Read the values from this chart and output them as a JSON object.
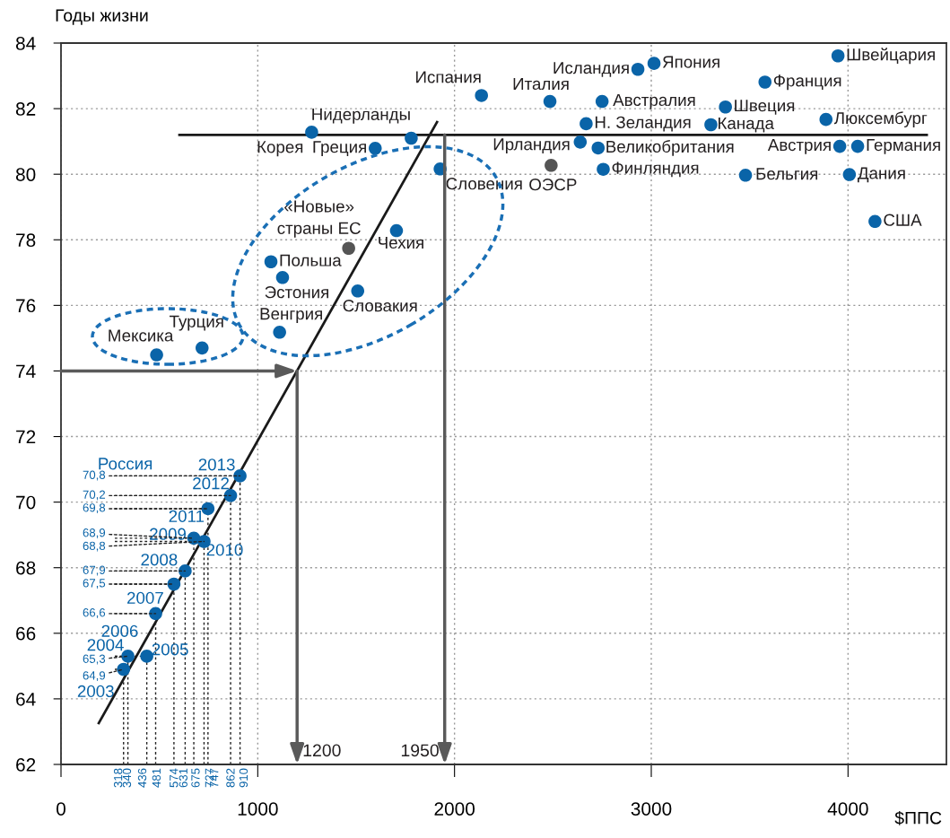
{
  "chart_data": {
    "type": "scatter",
    "xlabel": "$ППС",
    "ylabel": "Годы жизни",
    "xlim": [
      0,
      4500
    ],
    "ylim": [
      62,
      84
    ],
    "xticks": [
      0,
      1000,
      2000,
      3000,
      4000
    ],
    "yticks": [
      62,
      64,
      66,
      68,
      70,
      72,
      74,
      76,
      78,
      80,
      82,
      84
    ],
    "grid": true,
    "legend": false,
    "marker": "circle",
    "series": [
      {
        "color": "#0a64a8",
        "x": [
          3949,
          3014,
          2932,
          3578,
          2485,
          2137,
          2750,
          3377,
          3888,
          2669,
          3303,
          2639,
          2730,
          3958,
          4049,
          2756,
          3479,
          4007,
          4137,
          1274,
          1780,
          1597,
          1927,
          1705,
          1067,
          1126,
          1508,
          1111,
          486,
          717
        ],
        "values": [
          83.61,
          83.38,
          83.2,
          82.81,
          82.22,
          82.4,
          82.22,
          82.05,
          81.67,
          81.54,
          81.51,
          80.98,
          80.8,
          80.85,
          80.85,
          80.15,
          79.97,
          79.99,
          78.56,
          81.28,
          81.1,
          80.79,
          80.16,
          78.28,
          77.33,
          76.85,
          76.44,
          75.18,
          74.49,
          74.7
        ]
      },
      {
        "color": "#555555",
        "x": [
          2491,
          1462
        ],
        "values": [
          80.27,
          77.74
        ]
      },
      {
        "name": "Россия",
        "color": "#0a64a8",
        "x": [
          318,
          340,
          436,
          481,
          574,
          631,
          675,
          727,
          747,
          862,
          910
        ],
        "values": [
          64.9,
          65.3,
          65.3,
          66.6,
          67.5,
          67.9,
          68.9,
          68.8,
          69.8,
          70.2,
          70.8
        ]
      },
      {
        "type": "line",
        "marker": "none",
        "color": "#1a1a1a",
        "x": [
          192,
          1911
        ],
        "values": [
          63.26,
          81.59
        ]
      },
      {
        "type": "line",
        "marker": "none",
        "color": "#1a1a1a",
        "x": [
          602,
          4400
        ],
        "values": [
          81.2,
          81.2
        ]
      }
    ],
    "annotations": [
      {
        "text": "Швейцария",
        "x": 3949,
        "y": 83.61
      },
      {
        "text": "Япония",
        "x": 3014,
        "y": 83.38
      },
      {
        "text": "Исландия",
        "x": 2932,
        "y": 83.2
      },
      {
        "text": "Франция",
        "x": 3578,
        "y": 82.81
      },
      {
        "text": "Италия",
        "x": 2485,
        "y": 82.22
      },
      {
        "text": "Испания",
        "x": 2137,
        "y": 82.4
      },
      {
        "text": "Австралия",
        "x": 2750,
        "y": 82.22
      },
      {
        "text": "Швеция",
        "x": 3377,
        "y": 82.05
      },
      {
        "text": "Люксембург",
        "x": 3888,
        "y": 81.67
      },
      {
        "text": "Н. Зеландия",
        "x": 2669,
        "y": 81.54
      },
      {
        "text": "Канада",
        "x": 3303,
        "y": 81.51
      },
      {
        "text": "Ирландия",
        "x": 2639,
        "y": 80.98
      },
      {
        "text": "Великобритания",
        "x": 2730,
        "y": 80.8
      },
      {
        "text": "Австрия",
        "x": 3958,
        "y": 80.85
      },
      {
        "text": "Германия",
        "x": 4049,
        "y": 80.85
      },
      {
        "text": "ОЭСР",
        "x": 2491,
        "y": 80.27
      },
      {
        "text": "Финляндия",
        "x": 2756,
        "y": 80.15
      },
      {
        "text": "Бельгия",
        "x": 3479,
        "y": 79.97
      },
      {
        "text": "Дания",
        "x": 4007,
        "y": 79.99
      },
      {
        "text": "США",
        "x": 4137,
        "y": 78.56
      },
      {
        "text": "Корея",
        "x": 1274,
        "y": 81.28
      },
      {
        "text": "Нидерланды",
        "x": 1780,
        "y": 81.1
      },
      {
        "text": "Греция",
        "x": 1597,
        "y": 80.79
      },
      {
        "text": "Словения",
        "x": 1927,
        "y": 80.16
      },
      {
        "text": "Чехия",
        "x": 1705,
        "y": 78.28
      },
      {
        "text": "«Новые»\nстраны ЕС",
        "x": 1462,
        "y": 77.74
      },
      {
        "text": "Польша",
        "x": 1067,
        "y": 77.33
      },
      {
        "text": "Эстония",
        "x": 1126,
        "y": 76.85
      },
      {
        "text": "Словакия",
        "x": 1508,
        "y": 76.44
      },
      {
        "text": "Венгрия",
        "x": 1111,
        "y": 75.18
      },
      {
        "text": "Мексика",
        "x": 486,
        "y": 74.49
      },
      {
        "text": "Турция",
        "x": 717,
        "y": 74.7
      },
      {
        "text": "2003",
        "x": 318,
        "y": 64.9
      },
      {
        "text": "2004",
        "x": 340,
        "y": 65.3
      },
      {
        "text": "2005",
        "x": 436,
        "y": 65.3
      },
      {
        "text": "2006",
        "x": 481,
        "y": 66.6
      },
      {
        "text": "2007",
        "x": 574,
        "y": 67.5
      },
      {
        "text": "2008",
        "x": 631,
        "y": 67.9
      },
      {
        "text": "2009",
        "x": 675,
        "y": 68.9
      },
      {
        "text": "2010",
        "x": 727,
        "y": 68.8
      },
      {
        "text": "2011",
        "x": 747,
        "y": 69.8
      },
      {
        "text": "2012",
        "x": 862,
        "y": 70.2
      },
      {
        "text": "2013",
        "x": 910,
        "y": 70.8
      },
      {
        "text": "70,8",
        "x": 910,
        "y": 70.8
      },
      {
        "text": "70,2",
        "x": 862,
        "y": 70.2
      },
      {
        "text": "69,8",
        "x": 747,
        "y": 69.8
      },
      {
        "text": "68,9",
        "x": 675,
        "y": 68.9
      },
      {
        "text": "68,8",
        "x": 727,
        "y": 68.8
      },
      {
        "text": "67,9",
        "x": 631,
        "y": 67.9
      },
      {
        "text": "67,5",
        "x": 574,
        "y": 67.5
      },
      {
        "text": "66,6",
        "x": 481,
        "y": 66.6
      },
      {
        "text": "65,3",
        "x": 340,
        "y": 65.3
      },
      {
        "text": "64,9",
        "x": 318,
        "y": 64.9
      },
      {
        "text": "318",
        "x": 318,
        "y": 64.9
      },
      {
        "text": "340",
        "x": 340,
        "y": 65.3
      },
      {
        "text": "436",
        "x": 436,
        "y": 65.3
      },
      {
        "text": "481",
        "x": 481,
        "y": 66.6
      },
      {
        "text": "574",
        "x": 574,
        "y": 67.5
      },
      {
        "text": "631",
        "x": 631,
        "y": 67.9
      },
      {
        "text": "675",
        "x": 675,
        "y": 68.9
      },
      {
        "text": "727",
        "x": 727,
        "y": 68.8
      },
      {
        "text": "747",
        "x": 747,
        "y": 69.8
      },
      {
        "text": "862",
        "x": 862,
        "y": 70.2
      },
      {
        "text": "910",
        "x": 910,
        "y": 70.8
      },
      {
        "text": "1200",
        "x": 1200,
        "y": 74
      },
      {
        "text": "1950",
        "x": 1950,
        "y": 81.2
      }
    ]
  }
}
